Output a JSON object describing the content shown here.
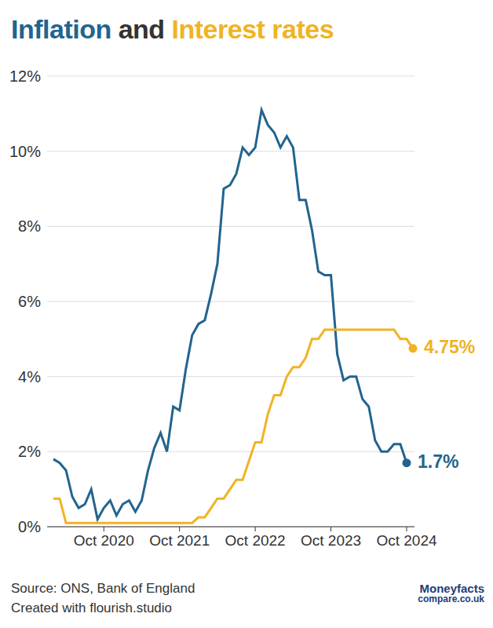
{
  "chart_data": {
    "type": "line",
    "title": "Inflation and Interest rates",
    "source": "Source: ONS, Bank of England",
    "credit": "Created with flourish.studio",
    "logo": [
      "Moneyfacts",
      "compare.co.uk"
    ],
    "categories": [
      null,
      null,
      null,
      null,
      null,
      null,
      null,
      null,
      "Oct 2020",
      null,
      null,
      null,
      null,
      null,
      null,
      null,
      null,
      null,
      null,
      null,
      "Oct 2021",
      null,
      null,
      null,
      null,
      null,
      null,
      null,
      null,
      null,
      null,
      null,
      "Oct 2022",
      null,
      null,
      null,
      null,
      null,
      null,
      null,
      null,
      null,
      null,
      null,
      "Oct 2023",
      null,
      null,
      null,
      null,
      null,
      null,
      null,
      null,
      null,
      null,
      null,
      "Oct 2024",
      null
    ],
    "series": [
      {
        "name": "Inflation",
        "color": "#22648f",
        "values": [
          1.8,
          1.7,
          1.5,
          0.8,
          0.5,
          0.6,
          1.0,
          0.2,
          0.5,
          0.7,
          0.3,
          0.6,
          0.7,
          0.4,
          0.7,
          1.5,
          2.1,
          2.5,
          2.0,
          3.2,
          3.1,
          4.2,
          5.1,
          5.4,
          5.5,
          6.2,
          7.0,
          9.0,
          9.1,
          9.4,
          10.1,
          9.9,
          10.1,
          11.1,
          10.7,
          10.5,
          10.1,
          10.4,
          10.1,
          8.7,
          8.7,
          7.9,
          6.8,
          6.7,
          6.7,
          4.6,
          3.9,
          4.0,
          4.0,
          3.4,
          3.2,
          2.3,
          2.0,
          2.0,
          2.2,
          2.2,
          1.7,
          null
        ],
        "value_labels": [
          null,
          null,
          null,
          null,
          null,
          null,
          null,
          null,
          null,
          null,
          null,
          null,
          null,
          null,
          null,
          null,
          null,
          null,
          null,
          null,
          null,
          null,
          null,
          null,
          null,
          null,
          null,
          null,
          null,
          null,
          null,
          null,
          null,
          null,
          null,
          null,
          null,
          null,
          null,
          null,
          null,
          null,
          null,
          null,
          null,
          null,
          null,
          null,
          null,
          null,
          null,
          null,
          null,
          null,
          null,
          null,
          "1.7%",
          null
        ]
      },
      {
        "name": "Interest rates",
        "color": "#f0b323",
        "values": [
          0.75,
          0.75,
          0.1,
          0.1,
          0.1,
          0.1,
          0.1,
          0.1,
          0.1,
          0.1,
          0.1,
          0.1,
          0.1,
          0.1,
          0.1,
          0.1,
          0.1,
          0.1,
          0.1,
          0.1,
          0.1,
          0.1,
          0.1,
          0.25,
          0.25,
          0.5,
          0.75,
          0.75,
          1.0,
          1.25,
          1.25,
          1.75,
          2.25,
          2.25,
          3.0,
          3.5,
          3.5,
          4.0,
          4.25,
          4.25,
          4.5,
          5.0,
          5.0,
          5.25,
          5.25,
          5.25,
          5.25,
          5.25,
          5.25,
          5.25,
          5.25,
          5.25,
          5.25,
          5.25,
          5.25,
          5.0,
          5.0,
          4.75
        ],
        "value_labels": [
          null,
          null,
          null,
          null,
          null,
          null,
          null,
          null,
          null,
          null,
          null,
          null,
          null,
          null,
          null,
          null,
          null,
          null,
          null,
          null,
          null,
          null,
          null,
          null,
          null,
          null,
          null,
          null,
          null,
          null,
          null,
          null,
          null,
          null,
          null,
          null,
          null,
          null,
          null,
          null,
          null,
          null,
          null,
          null,
          null,
          null,
          null,
          null,
          null,
          null,
          null,
          null,
          null,
          null,
          null,
          null,
          null,
          "4.75%"
        ]
      }
    ],
    "ylim": [
      0,
      12
    ],
    "yticks": [
      {
        "value": 0,
        "label": "0%"
      },
      {
        "value": 2,
        "label": "2%"
      },
      {
        "value": 4,
        "label": "4%"
      },
      {
        "value": 6,
        "label": "6%"
      },
      {
        "value": 8,
        "label": "8%"
      },
      {
        "value": 10,
        "label": "10%"
      },
      {
        "value": 12,
        "label": "12%"
      }
    ],
    "grid": true
  }
}
